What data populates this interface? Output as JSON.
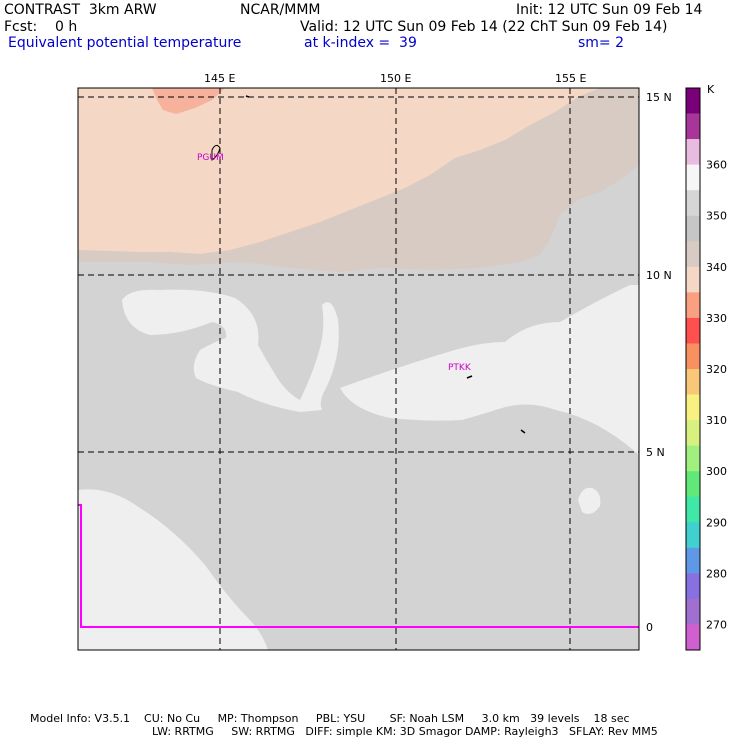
{
  "header": {
    "model": "CONTRAST  3km ARW",
    "org": "NCAR/MMM",
    "init": "Init: 12 UTC Sun 09 Feb 14",
    "fcst": "Fcst:    0 h",
    "valid": "Valid: 12 UTC Sun 09 Feb 14 (22 ChT Sun 09 Feb 14)",
    "field": "Equivalent potential temperature",
    "level": "at k-index =  39",
    "smooth": "sm= 2"
  },
  "map": {
    "lon_labels": [
      "145 E",
      "150 E",
      "155 E"
    ],
    "lat_labels": [
      "15 N",
      "10 N",
      "5 N",
      "0"
    ],
    "stations": [
      "PGUM",
      "PTKK"
    ],
    "colors": {
      "t345": "#d8cbc3",
      "t340": "#f4d7c4",
      "t335": "#f6b29c",
      "t350": "#d3d3d3",
      "t355": "#efefef",
      "marker": "#ff00ff"
    }
  },
  "colorbar": {
    "unit": "K",
    "labels": [
      "360",
      "350",
      "340",
      "330",
      "320",
      "310",
      "300",
      "290",
      "280",
      "270"
    ],
    "colors": [
      "#7a007a",
      "#a8369a",
      "#e8bce0",
      "#f6f6f6",
      "#d6d6d6",
      "#c6c6c6",
      "#d8cbc3",
      "#f4d7c4",
      "#f8a080",
      "#ff5050",
      "#f89060",
      "#f8c878",
      "#f8f080",
      "#d8f080",
      "#a0f080",
      "#60e878",
      "#40e8a8",
      "#40d0d0",
      "#6098e8",
      "#8870e0",
      "#a070d0",
      "#d060d0"
    ]
  },
  "footer": {
    "line1": "Model Info: V3.5.1    CU: No Cu     MP: Thompson     PBL: YSU       SF: Noah LSM     3.0 km   39 levels    18 sec",
    "line2": "LW: RRTMG     SW: RRTMG   DIFF: simple KM: 3D Smagor DAMP: Rayleigh3   SFLAY: Rev MM5"
  }
}
